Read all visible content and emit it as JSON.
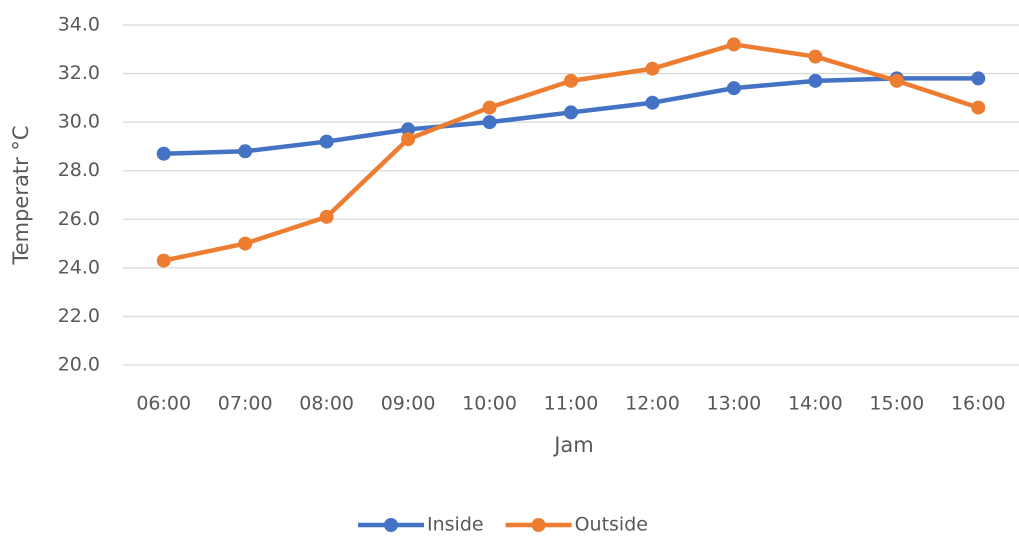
{
  "chart_data": {
    "type": "line",
    "y_label": "Temperatr °C",
    "x_label": "Jam",
    "categories": [
      "06:00",
      "07:00",
      "08:00",
      "09:00",
      "10:00",
      "11:00",
      "12:00",
      "13:00",
      "14:00",
      "15:00",
      "16:00"
    ],
    "series": [
      {
        "name": "Inside",
        "color": "#4472c4",
        "values": [
          28.7,
          28.8,
          29.2,
          29.7,
          30.0,
          30.4,
          30.8,
          31.4,
          31.7,
          31.8,
          31.8
        ]
      },
      {
        "name": "Outside",
        "color": "#ed7d31",
        "values": [
          24.3,
          25.0,
          26.1,
          29.3,
          30.6,
          31.7,
          32.2,
          33.2,
          32.7,
          31.7,
          30.6
        ]
      }
    ],
    "ylim": [
      20,
      34
    ],
    "yticks": [
      {
        "value": 20,
        "label": "20.0"
      },
      {
        "value": 22,
        "label": "22.0"
      },
      {
        "value": 24,
        "label": "24.0"
      },
      {
        "value": 26,
        "label": "26.0"
      },
      {
        "value": 28,
        "label": "28.0"
      },
      {
        "value": 30,
        "label": "30.0"
      },
      {
        "value": 32,
        "label": "32.0"
      },
      {
        "value": 34,
        "label": "34.0"
      }
    ],
    "grid": true
  }
}
